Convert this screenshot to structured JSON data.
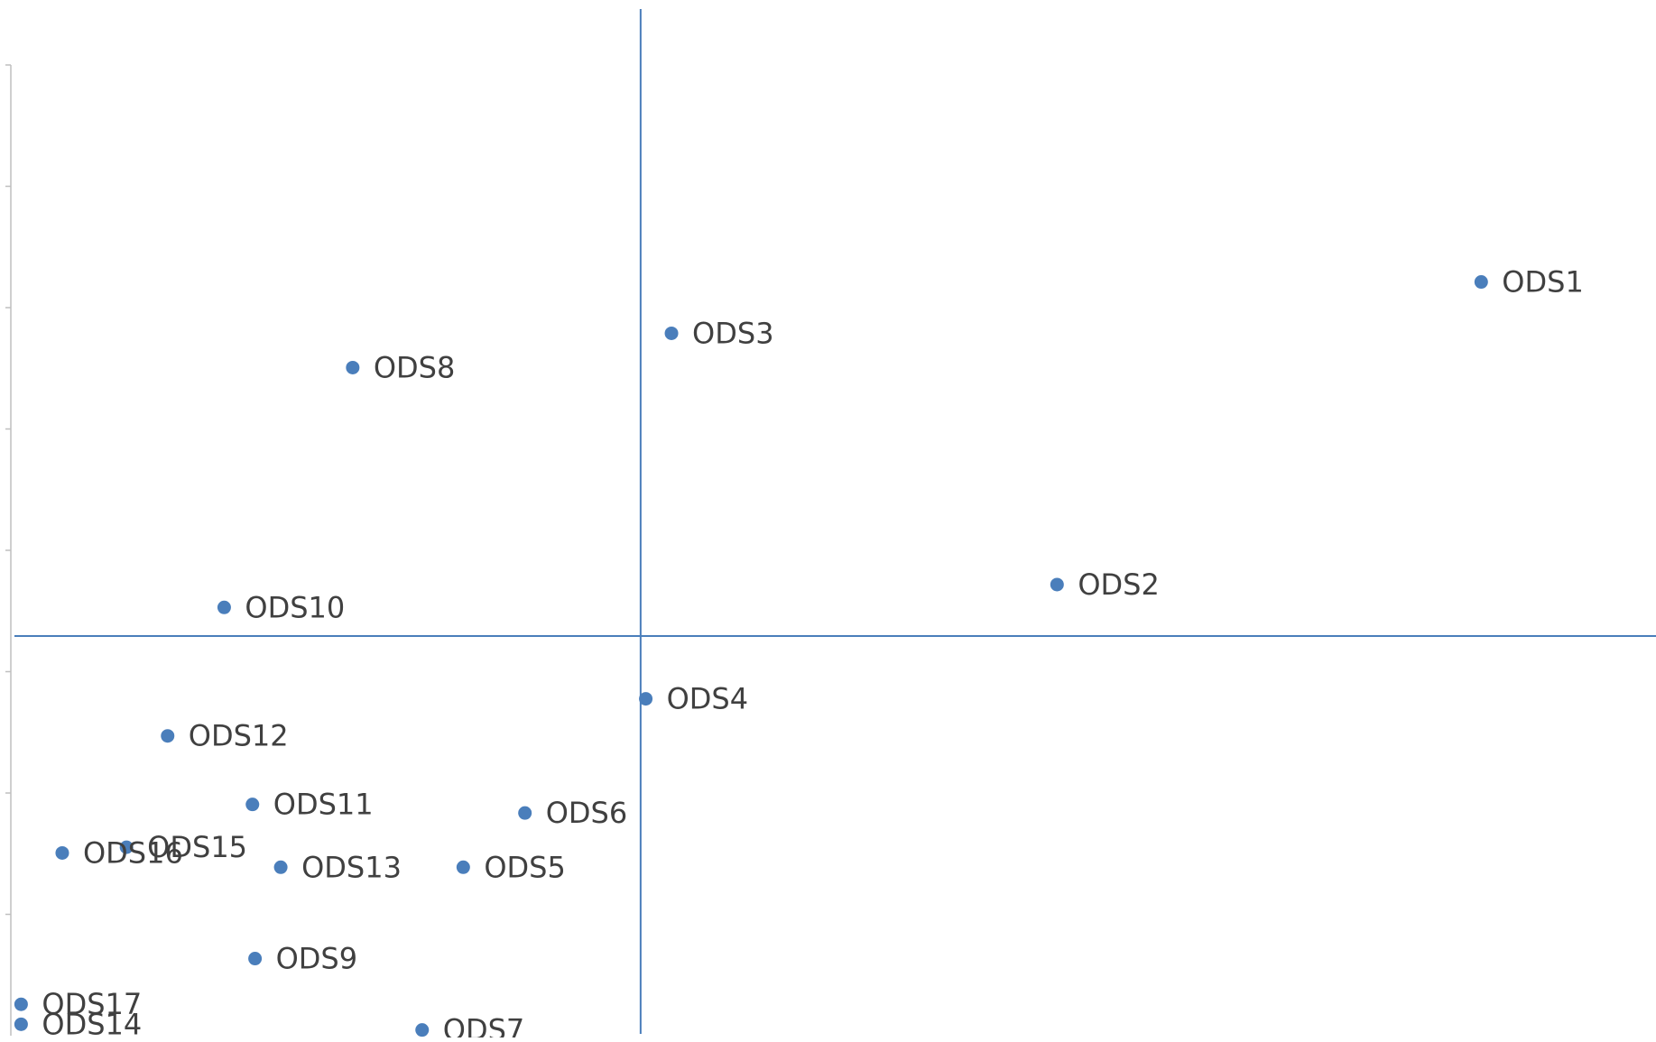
{
  "chart_data": {
    "type": "scatter",
    "title": "",
    "xlabel": "",
    "ylabel": "",
    "grid": false,
    "legend": "none",
    "xlim": [
      -0.24,
      0.4
    ],
    "ylim": [
      -0.14,
      0.2
    ],
    "reference_lines": {
      "x": 0.005,
      "y": 0.0
    },
    "y_tick_count": 8,
    "series": [
      {
        "points": [
          {
            "label": "ODS1",
            "x": 0.332,
            "y": 0.124
          },
          {
            "label": "ODS2",
            "x": 0.167,
            "y": 0.018
          },
          {
            "label": "ODS3",
            "x": 0.017,
            "y": 0.106
          },
          {
            "label": "ODS4",
            "x": 0.007,
            "y": -0.022
          },
          {
            "label": "ODS5",
            "x": -0.064,
            "y": -0.081
          },
          {
            "label": "ODS6",
            "x": -0.04,
            "y": -0.062
          },
          {
            "label": "ODS7",
            "x": -0.08,
            "y": -0.138
          },
          {
            "label": "ODS8",
            "x": -0.107,
            "y": 0.094
          },
          {
            "label": "ODS9",
            "x": -0.145,
            "y": -0.113
          },
          {
            "label": "ODS10",
            "x": -0.157,
            "y": 0.01
          },
          {
            "label": "ODS11",
            "x": -0.146,
            "y": -0.059
          },
          {
            "label": "ODS12",
            "x": -0.179,
            "y": -0.035
          },
          {
            "label": "ODS13",
            "x": -0.135,
            "y": -0.081
          },
          {
            "label": "ODS14",
            "x": -0.236,
            "y": -0.136
          },
          {
            "label": "ODS15",
            "x": -0.195,
            "y": -0.074
          },
          {
            "label": "ODS16",
            "x": -0.22,
            "y": -0.076
          },
          {
            "label": "ODS17",
            "x": -0.236,
            "y": -0.129
          }
        ]
      }
    ],
    "colors": {
      "marker": "#4a7ebb",
      "reference_line": "#4a7ebb",
      "axis": "#bfbfbf",
      "label_text": "#404040"
    }
  }
}
